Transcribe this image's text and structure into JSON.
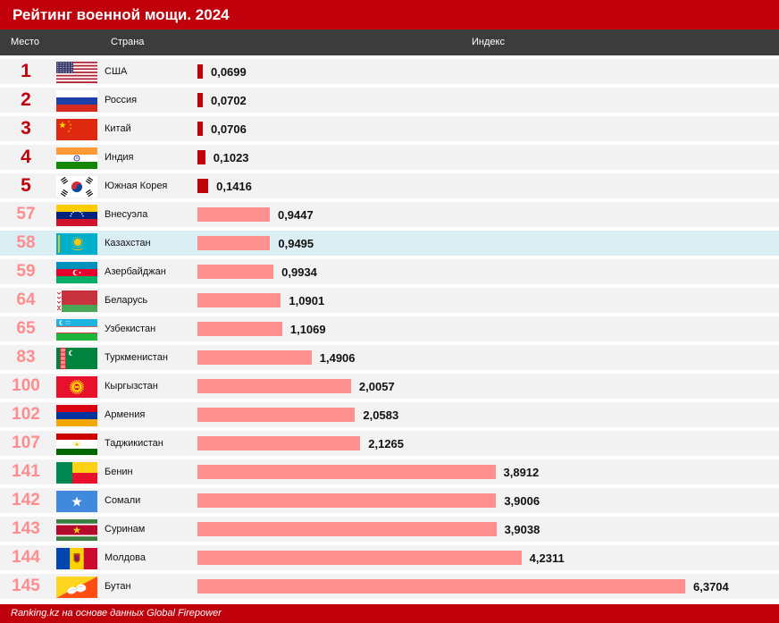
{
  "title": "Рейтинг военной мощи. 2024",
  "columns": {
    "rank": "Место",
    "country": "Страна",
    "index": "Индекс"
  },
  "footer": "Ranking.kz на основе данных Global Firepower",
  "highlight_country": "Казахстан",
  "colors": {
    "brand_red": "#c0000b",
    "bar_top": "#c0000b",
    "bar_other": "#ff9090",
    "highlight_row": "#dbeef4",
    "header_bg": "#3c3c3c"
  },
  "chart_data": {
    "type": "bar",
    "orientation": "horizontal",
    "title": "Рейтинг военной мощи. 2024",
    "categories": [
      "США",
      "Россия",
      "Китай",
      "Индия",
      "Южная Корея",
      "Внесуэла",
      "Казахстан",
      "Азербайджан",
      "Беларусь",
      "Узбекистан",
      "Туркменистан",
      "Кыргызстан",
      "Армения",
      "Таджикистан",
      "Бенин",
      "Сомали",
      "Суринам",
      "Молдова",
      "Бутан"
    ],
    "ranks": [
      1,
      2,
      3,
      4,
      5,
      57,
      58,
      59,
      64,
      65,
      83,
      100,
      102,
      107,
      141,
      142,
      143,
      144,
      145
    ],
    "values": [
      0.0699,
      0.0702,
      0.0706,
      0.1023,
      0.1416,
      0.9447,
      0.9495,
      0.9934,
      1.0901,
      1.1069,
      1.4906,
      2.0057,
      2.0583,
      2.1265,
      3.8912,
      3.9006,
      3.9038,
      4.2311,
      6.3704
    ],
    "value_labels": [
      "0,0699",
      "0,0702",
      "0,0706",
      "0,1023",
      "0,1416",
      "0,9447",
      "0,9495",
      "0,9934",
      "1,0901",
      "1,1069",
      "1,4906",
      "2,0057",
      "2,0583",
      "2,1265",
      "3,8912",
      "3,9006",
      "3,9038",
      "4,2311",
      "6,3704"
    ],
    "flags": [
      "usa-flag-icon",
      "russia-flag-icon",
      "china-flag-icon",
      "india-flag-icon",
      "south-korea-flag-icon",
      "venezuela-flag-icon",
      "kazakhstan-flag-icon",
      "azerbaijan-flag-icon",
      "belarus-flag-icon",
      "uzbekistan-flag-icon",
      "turkmenistan-flag-icon",
      "kyrgyzstan-flag-icon",
      "armenia-flag-icon",
      "tajikistan-flag-icon",
      "benin-flag-icon",
      "somalia-flag-icon",
      "suriname-flag-icon",
      "moldova-flag-icon",
      "bhutan-flag-icon"
    ],
    "xlabel": "Индекс",
    "ylabel": "Страна",
    "xlim": [
      0,
      6.3704
    ],
    "grid": false,
    "legend": "none"
  }
}
